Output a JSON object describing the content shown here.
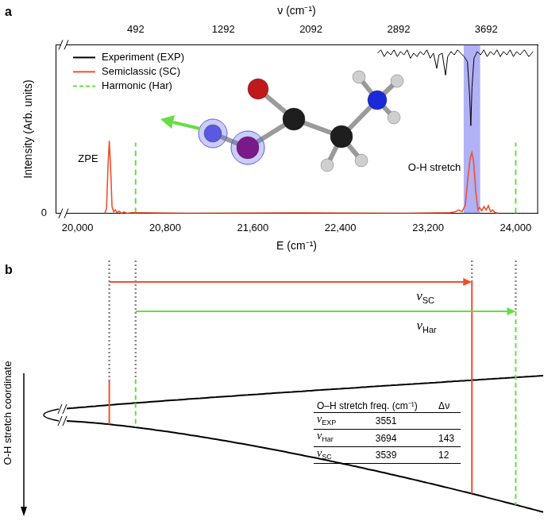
{
  "chart_data": {
    "type": "line",
    "panel": "a",
    "x_label": "E (cm⁻¹)",
    "x2_label": "ν (cm⁻¹)",
    "y_label": "Intensity (Arb. units)",
    "xlim": [
      19800,
      24200
    ],
    "xticks": [
      {
        "value": 20000,
        "label": "20,000"
      },
      {
        "value": 20800,
        "label": "20,800"
      },
      {
        "value": 21600,
        "label": "21,600"
      },
      {
        "value": 22400,
        "label": "22,400"
      },
      {
        "value": 23200,
        "label": "23,200"
      },
      {
        "value": 24000,
        "label": "24,000"
      }
    ],
    "x2lim": [
      -239,
      4161
    ],
    "x2ticks": [
      492,
      1292,
      2092,
      2892,
      3692
    ],
    "ylim": [
      0,
      1
    ],
    "yticks": [
      0
    ],
    "grid": false,
    "legend": "upper left",
    "annotations": [
      "ZPE",
      "O-H stretch"
    ],
    "highlight": {
      "from": 23525,
      "to": 23675,
      "color": "#7d7df0"
    },
    "series": [
      {
        "name": "Experiment (EXP)",
        "color": "#000000",
        "axis": "x2",
        "line_style": "solid",
        "x": [
          2700,
          2730,
          2760,
          2790,
          2820,
          2850,
          2880,
          2910,
          2940,
          2970,
          3000,
          3030,
          3060,
          3090,
          3120,
          3150,
          3180,
          3210,
          3240,
          3260,
          3290,
          3320,
          3340,
          3370,
          3400,
          3430,
          3460,
          3490,
          3520,
          3540,
          3551,
          3562,
          3580,
          3610,
          3640,
          3670,
          3700,
          3730,
          3760,
          3790,
          3820,
          3850,
          3880,
          3910,
          3940,
          3970,
          4000,
          4040,
          4080,
          4120
        ],
        "values": [
          0.95,
          0.97,
          0.93,
          0.96,
          0.94,
          0.97,
          0.93,
          0.96,
          0.94,
          0.97,
          0.92,
          0.95,
          0.93,
          0.96,
          0.94,
          0.97,
          0.92,
          0.95,
          0.86,
          0.94,
          0.95,
          0.82,
          0.93,
          0.96,
          0.94,
          0.97,
          0.95,
          0.93,
          0.9,
          0.7,
          0.52,
          0.75,
          0.92,
          0.96,
          0.94,
          0.97,
          0.93,
          0.96,
          0.94,
          0.97,
          0.93,
          0.96,
          0.94,
          0.97,
          0.93,
          0.96,
          0.94,
          0.97,
          0.93,
          0.96
        ]
      },
      {
        "name": "Semiclassic (SC)",
        "color": "#f0502a",
        "line_style": "solid",
        "x": [
          20250,
          20265,
          20278,
          20290,
          20302,
          20315,
          20330,
          20345,
          20360,
          20380,
          20400,
          20425,
          20450,
          20500,
          21000,
          22000,
          23000,
          23400,
          23450,
          23480,
          23510,
          23540,
          23565,
          23585,
          23600,
          23615,
          23635,
          23655,
          23670,
          23690,
          23710,
          23730,
          23750,
          23770,
          23790,
          23810,
          23840
        ],
        "values": [
          0,
          0.03,
          0.28,
          0.43,
          0.27,
          0.04,
          0.01,
          0.02,
          0.005,
          0.012,
          0,
          0.008,
          0,
          0.004,
          0,
          0.003,
          0,
          0.004,
          0.01,
          0.02,
          0.01,
          0.05,
          0.22,
          0.33,
          0.36,
          0.31,
          0.13,
          0.02,
          0.035,
          0.015,
          0.04,
          0.02,
          0.045,
          0.01,
          0.02,
          0.005,
          0
        ]
      },
      {
        "name": "Harmonic (Har)",
        "color": "#66dd44",
        "type": "stem",
        "line_style": "dashed",
        "x": [
          20530,
          24000
        ],
        "values": [
          0.42,
          0.42
        ]
      }
    ]
  },
  "diagram": {
    "panel": "b",
    "y_label": "O-H stretch coordinate",
    "arrows": [
      {
        "series": "Semiclassic (SC)",
        "symbol": "ν",
        "sub": "SC"
      },
      {
        "series": "Harmonic (Har)",
        "symbol": "ν",
        "sub": "Har"
      }
    ],
    "table": {
      "header": [
        "O–H stretch freq. (cm⁻¹)",
        "Δν"
      ],
      "rows": [
        {
          "symbol": "ν",
          "sub": "EXP",
          "freq": 3551,
          "delta": null
        },
        {
          "symbol": "ν",
          "sub": "Har",
          "freq": 3694,
          "delta": 143
        },
        {
          "symbol": "ν",
          "sub": "SC",
          "freq": 3539,
          "delta": 12
        }
      ]
    }
  }
}
